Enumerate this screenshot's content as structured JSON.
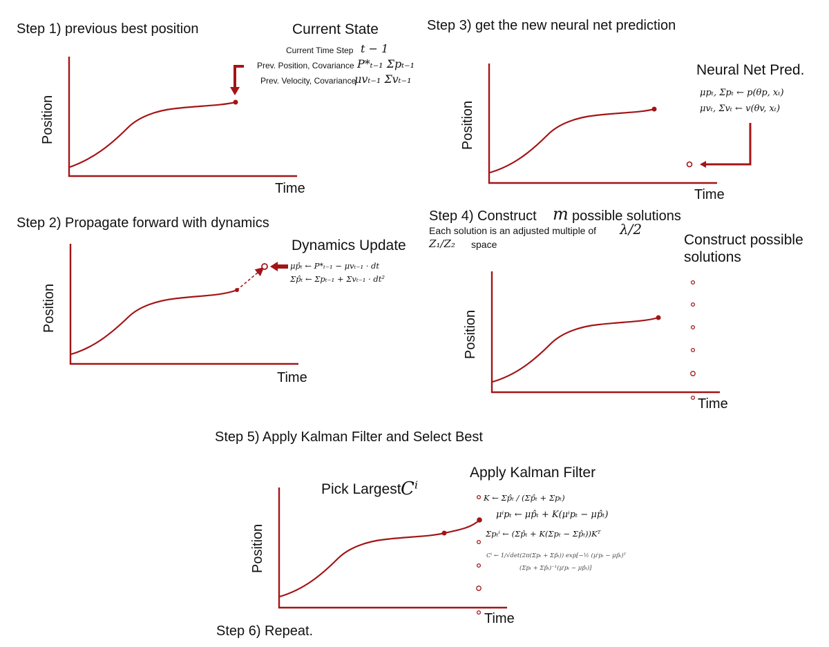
{
  "colors": {
    "accent": "#a31416",
    "text": "#111111"
  },
  "axis_labels": {
    "x": "Time",
    "y": "Position"
  },
  "panel1": {
    "step": "Step 1) previous best position",
    "heading": "Current State",
    "rows": [
      {
        "label": "Current Time Step",
        "math": "t − 1"
      },
      {
        "label": "Prev.  Position, Covariance",
        "math": "P*ₜ₋₁  Σpₜ₋₁"
      },
      {
        "label": "Prev. Velocity, Covariance",
        "math": "μvₜ₋₁ Σvₜ₋₁"
      }
    ]
  },
  "panel2": {
    "step": "Step 2) Propagate forward with dynamics",
    "heading": "Dynamics Update",
    "eq1": "μp̂ₜ ← P*ₜ₋₁ − μvₜ₋₁ · dt",
    "eq2": "Σp̂ₜ ← Σpₜ₋₁ + Σvₜ₋₁ · dt²"
  },
  "panel3": {
    "step": "Step 3)  get the new neural net prediction",
    "heading": "Neural Net Pred.",
    "eq1": "μpₜ, Σpₜ ← p(θp, xₜ)",
    "eq2": "μvₜ, Σvₜ ← v(θv, xₜ)"
  },
  "panel4": {
    "step_prefix": "Step 4)  Construct",
    "step_math": "m",
    "step_suffix": "possible solutions",
    "sub1": "Each solution is an adjusted multiple of",
    "sub1_math": "λ/2",
    "sub2_math": "Z₁/Z₂",
    "sub2": "space",
    "heading_line1": "Construct possible",
    "heading_line2": "solutions"
  },
  "panel5": {
    "step": "Step 5)  Apply Kalman Filter and Select Best",
    "pick_label": "Pick Largest",
    "pick_math": "Cⁱ",
    "heading": "Apply Kalman Filter",
    "eq_k": "K ← Σp̂ₜ / (Σp̂ₜ + Σpₜ)",
    "eq_mu": "μⁱpₜ ← μp̂ₜ + K(μⁱpₜ − μp̂ₜ)",
    "eq_sigma": "Σpₜⁱ ← (Σp̂ₜ + K(Σpₜ − Σp̂ₜ))Kᵀ",
    "eq_c1": "Cⁱ ← 1/√det(2π(Σpₜ + Σp̂ₜ)) exp[−½ (μⁱpₜ − μp̂ₜ)ᵀ",
    "eq_c2": "(Σpₜ + Σp̂ₜ)⁻¹(μⁱpₜ − μp̂ₜ)]"
  },
  "step6": "Step 6)  Repeat."
}
